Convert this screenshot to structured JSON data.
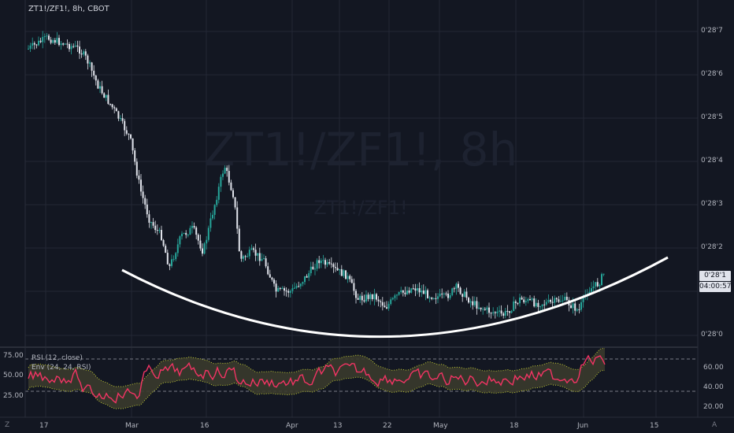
{
  "header": {
    "symbol_line": "ZT1!/ZF1!, 8h, CBOT"
  },
  "watermark": {
    "big": "ZT1!/ZF1!, 8h",
    "small": "ZT1!/ZF1!"
  },
  "price_axis": {
    "labels": [
      "0'28'7",
      "0'28'6",
      "0'28'5",
      "0'28'4",
      "0'28'3",
      "0'28'2",
      "0'28'1",
      "0'28'0"
    ],
    "last_price": "0'28'1",
    "countdown": "04:00:57"
  },
  "rsi_axis": {
    "left_labels": [
      "75.00",
      "50.00",
      "25.00"
    ],
    "right_labels": [
      "60.00",
      "40.00",
      "20.00"
    ]
  },
  "time_axis": {
    "labels": [
      "17",
      "Mar",
      "16",
      "Apr",
      "13",
      "22",
      "May",
      "18",
      "Jun",
      "15"
    ]
  },
  "indicators": {
    "rsi_label": "RSI (12, close)",
    "env_label": "Env (24, 24, RSI)"
  },
  "corners": {
    "left": "Z",
    "right": "A"
  },
  "colors": {
    "background": "#131722",
    "up": "#26a69a",
    "down": "#e0e3eb",
    "rsi": "#f23464",
    "env": "#c0ca33",
    "curve": "#ffffff"
  }
}
